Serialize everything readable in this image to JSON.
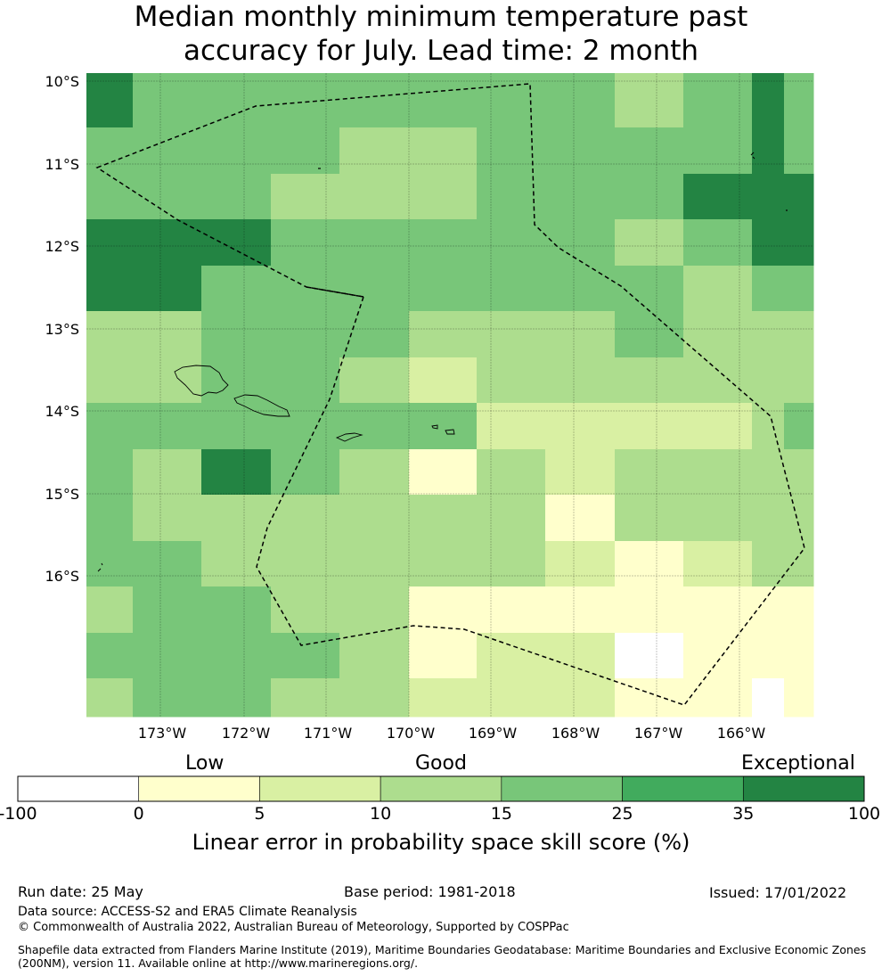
{
  "title_line1": "Median monthly minimum temperature past",
  "title_line2": "accuracy for July. Lead time: 2 month",
  "map": {
    "lat_labels": [
      "10°S",
      "11°S",
      "12°S",
      "13°S",
      "14°S",
      "15°S",
      "16°S"
    ],
    "lon_labels": [
      "173°W",
      "172°W",
      "171°W",
      "170°W",
      "169°W",
      "168°W",
      "167°W",
      "166°W"
    ],
    "grid_values": [
      [
        6,
        4,
        4,
        4,
        4,
        4,
        4,
        4,
        3,
        4,
        6,
        4
      ],
      [
        4,
        4,
        4,
        4,
        3,
        3,
        4,
        4,
        4,
        4,
        6,
        4
      ],
      [
        4,
        4,
        4,
        3,
        3,
        3,
        4,
        4,
        4,
        6,
        6,
        6
      ],
      [
        6,
        6,
        6,
        4,
        4,
        4,
        4,
        4,
        3,
        4,
        6,
        6
      ],
      [
        6,
        6,
        4,
        4,
        4,
        4,
        4,
        4,
        4,
        3,
        4,
        4
      ],
      [
        3,
        3,
        4,
        4,
        4,
        3,
        3,
        3,
        4,
        3,
        3,
        3
      ],
      [
        3,
        3,
        4,
        4,
        3,
        2,
        3,
        3,
        3,
        3,
        3,
        3
      ],
      [
        4,
        4,
        4,
        4,
        4,
        4,
        2,
        2,
        2,
        2,
        3,
        4
      ],
      [
        4,
        3,
        6,
        4,
        3,
        1,
        3,
        2,
        3,
        3,
        3,
        3
      ],
      [
        4,
        3,
        3,
        3,
        3,
        3,
        3,
        1,
        3,
        3,
        3,
        3
      ],
      [
        4,
        4,
        3,
        3,
        3,
        3,
        3,
        2,
        1,
        2,
        3,
        3
      ],
      [
        3,
        4,
        4,
        3,
        3,
        1,
        1,
        1,
        1,
        1,
        1,
        1
      ],
      [
        4,
        4,
        4,
        4,
        3,
        1,
        2,
        2,
        0,
        1,
        1,
        1
      ],
      [
        3,
        4,
        4,
        3,
        3,
        2,
        2,
        2,
        1,
        1,
        0,
        1
      ]
    ]
  },
  "legend": {
    "category_low": "Low",
    "category_good": "Good",
    "category_exceptional": "Exceptional",
    "ticks": [
      "-100",
      "0",
      "5",
      "10",
      "15",
      "25",
      "35",
      "100"
    ],
    "colors": [
      "#ffffff",
      "#ffffcc",
      "#d9f0a3",
      "#addd8e",
      "#78c679",
      "#41ab5d",
      "#238443"
    ],
    "title": "Linear error in probability space skill score (%)"
  },
  "footer": {
    "run_date": "Run date: 25 May",
    "base_period": "Base period: 1981-2018",
    "issued": "Issued: 17/01/2022",
    "data_source": "Data source: ACCESS-S2 and ERA5 Climate Reanalysis",
    "copyright": "© Commonwealth of Australia 2022, Australian Bureau of Meteorology, Supported by COSPPac",
    "shapefile_line1": "Shapefile data extracted from Flanders Marine Institute (2019), Maritime Boundaries Geodatabase: Maritime Boundaries and Exclusive Economic Zones",
    "shapefile_line2": "(200NM), version 11. Available online at http://www.marineregions.org/."
  }
}
